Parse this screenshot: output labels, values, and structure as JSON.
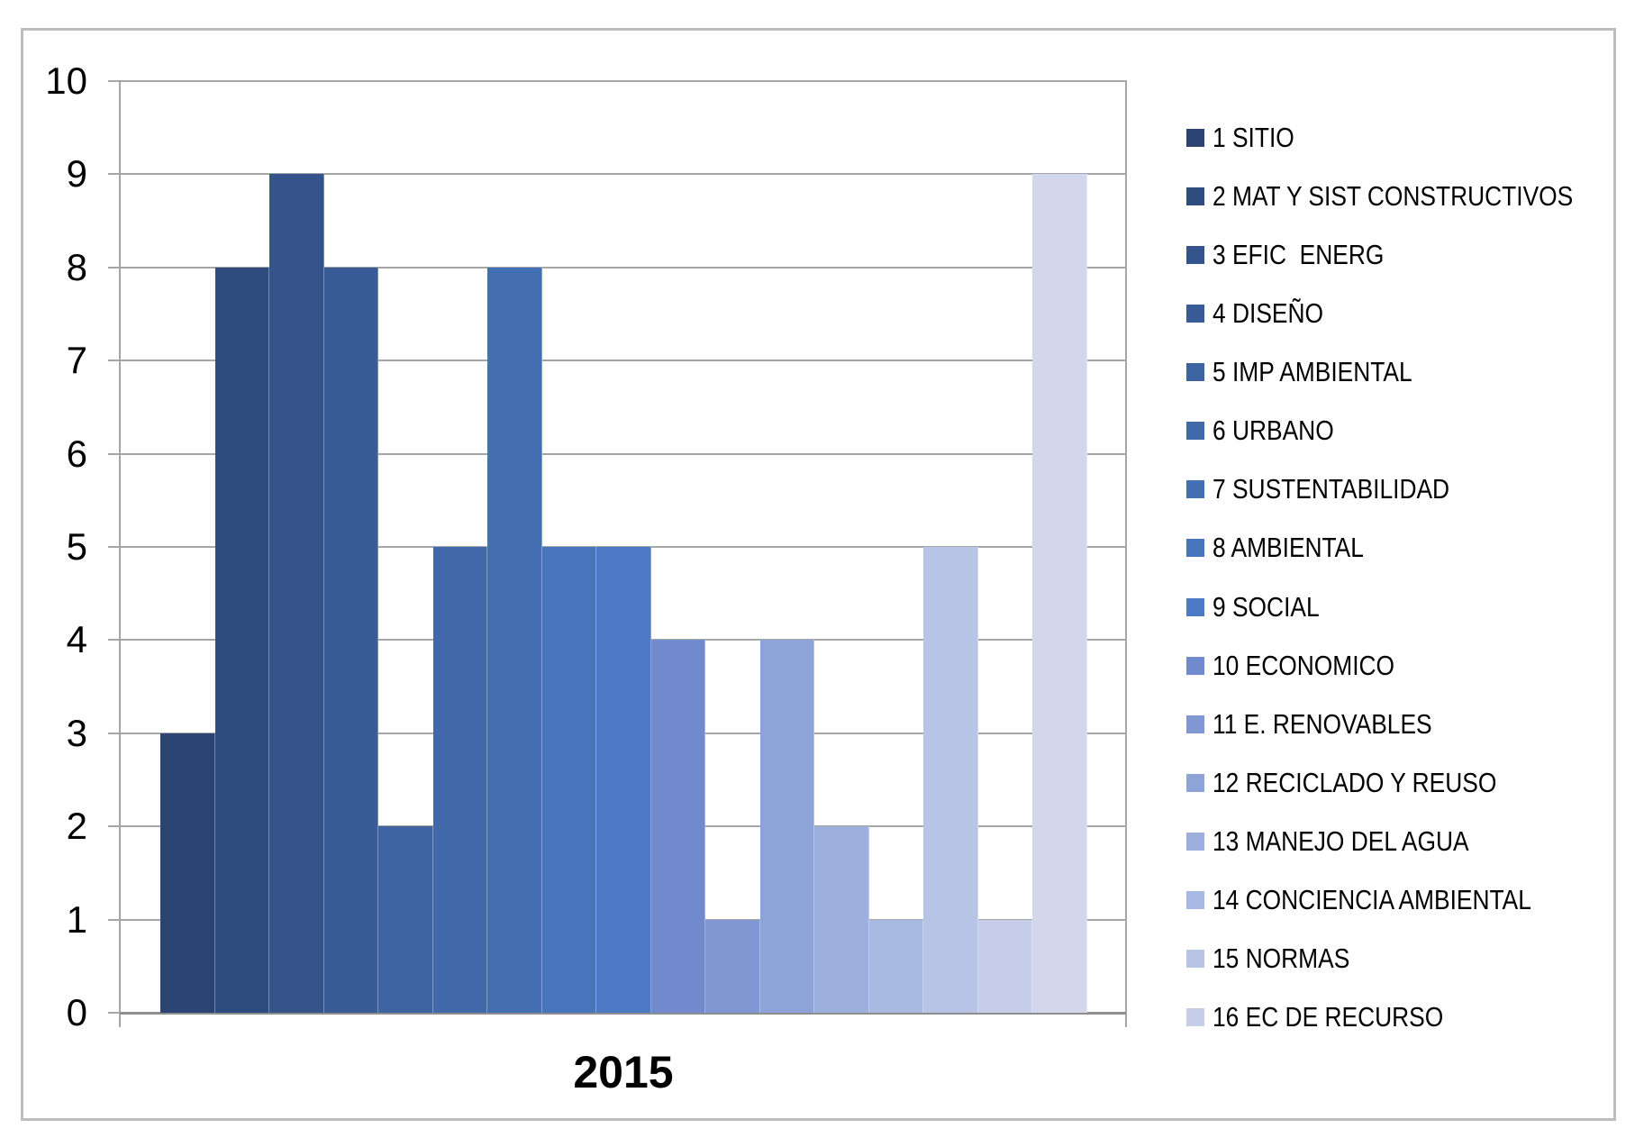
{
  "chart_data": {
    "type": "bar",
    "title": "",
    "xlabel": "2015",
    "ylabel": "",
    "ylim": [
      0,
      10
    ],
    "yticks": [
      0,
      1,
      2,
      3,
      4,
      5,
      6,
      7,
      8,
      9,
      10
    ],
    "grid": true,
    "legend_position": "right",
    "categories": [
      "2015"
    ],
    "series": [
      {
        "name": "1 SITIO",
        "value": 3,
        "color": "#2b4473",
        "in_legend": true
      },
      {
        "name": "2 MAT Y SIST CONSTRUCTIVOS",
        "value": 8,
        "color": "#2f4c7f",
        "in_legend": true
      },
      {
        "name": "3 EFIC  ENERG",
        "value": 9,
        "color": "#34548b",
        "in_legend": true
      },
      {
        "name": "4 DISEÑO",
        "value": 8,
        "color": "#395c97",
        "in_legend": true
      },
      {
        "name": "5 IMP AMBIENTAL",
        "value": 2,
        "color": "#3d63a0",
        "in_legend": true
      },
      {
        "name": "6 URBANO",
        "value": 5,
        "color": "#4169a9",
        "in_legend": true
      },
      {
        "name": "7 SUSTENTABILIDAD",
        "value": 8,
        "color": "#456fb3",
        "in_legend": true
      },
      {
        "name": "8 AMBIENTAL",
        "value": 5,
        "color": "#4874bb",
        "in_legend": true
      },
      {
        "name": "9 SOCIAL",
        "value": 5,
        "color": "#4c78c4",
        "in_legend": true
      },
      {
        "name": "10 ECONOMICO",
        "value": 4,
        "color": "#7189cd",
        "in_legend": true
      },
      {
        "name": "11 E. RENOVABLES",
        "value": 1,
        "color": "#8097d3",
        "in_legend": true
      },
      {
        "name": "12 RECICLADO Y REUSO",
        "value": 4,
        "color": "#8ea3d8",
        "in_legend": true
      },
      {
        "name": "13 MANEJO DEL AGUA",
        "value": 2,
        "color": "#9cafdd",
        "in_legend": true
      },
      {
        "name": "14 CONCIENCIA AMBIENTAL",
        "value": 1,
        "color": "#a9bae2",
        "in_legend": true
      },
      {
        "name": "15 NORMAS",
        "value": 5,
        "color": "#b7c4e6",
        "in_legend": true
      },
      {
        "name": "16 EC DE RECURSO",
        "value": 1,
        "color": "#c5cde8",
        "in_legend": true
      },
      {
        "name": "",
        "value": 9,
        "color": "#d2d7ec",
        "in_legend": false
      }
    ]
  },
  "colors": {
    "gridline": "#a6a6a6",
    "axis": "#8e8e8e",
    "frame_border": "#bdbdbd",
    "text": "#000000",
    "background": "#ffffff"
  }
}
